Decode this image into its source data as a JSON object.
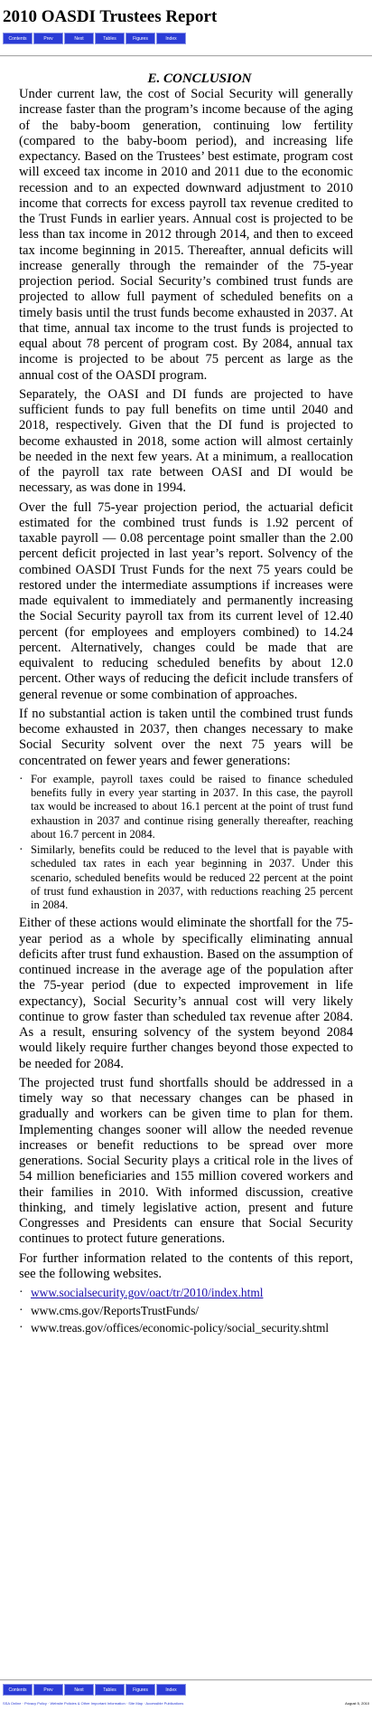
{
  "header": {
    "title": "2010 OASDI Trustees Report"
  },
  "nav": [
    {
      "label": "Contents",
      "width": 33
    },
    {
      "label": "Prev",
      "width": 33
    },
    {
      "label": "Next",
      "width": 33
    },
    {
      "label": "Tables",
      "width": 33
    },
    {
      "label": "Figures",
      "width": 33
    },
    {
      "label": "Index",
      "width": 33
    }
  ],
  "section": {
    "heading": "E. CONCLUSION",
    "paragraphs": [
      "Under current law, the cost of Social Security will generally increase faster than the program’s income because of the aging of the baby-boom generation, continuing low fertility (compared to the baby-boom period), and increasing life expectancy. Based on the Trustees’ best estimate, program cost will exceed tax income in 2010 and 2011 due to the economic recession and to an expected downward adjustment to 2010 income that corrects for excess payroll tax revenue credited to the Trust Funds in earlier years. Annual cost is projected to be less than tax income in 2012 through 2014, and then to exceed tax income beginning in 2015. Thereafter, annual deficits will increase generally through the remainder of the 75-year projection period. Social Security’s combined trust funds are projected to allow full payment of scheduled benefits on a timely basis until the trust funds become exhausted in 2037. At that time, annual tax income to the trust funds is projected to equal about 78 percent of program cost. By 2084, annual tax income is projected to be about 75 percent as large as the annual cost of the OASDI program.",
      "Separately, the OASI and DI funds are projected to have sufficient funds to pay full benefits on time until 2040 and 2018, respectively. Given that the DI fund is projected to become exhausted in 2018, some action will almost certainly be needed in the next few years. At a minimum, a reallocation of the payroll tax rate between OASI and DI would be necessary, as was done in 1994.",
      "Over the full 75-year projection period, the actuarial deficit estimated for the combined trust funds is 1.92 percent of taxable payroll — 0.08 percentage point smaller than the 2.00 percent deficit projected in last year’s report. Solvency of the combined OASDI Trust Funds for the next 75 years could be restored under the intermediate assumptions if increases were made equivalent to immediately and permanently increasing the Social Security payroll tax from its current level of 12.40 percent (for employees and employers combined) to 14.24 percent. Alternatively, changes could be made that are equivalent to reducing scheduled benefits by about 12.0 percent. Other ways of reducing the deficit include transfers of general revenue or some combination of approaches.",
      "If no substantial action is taken until the combined trust funds become exhausted in 2037, then changes necessary to make Social Security solvent over the next 75 years will be concentrated on fewer years and fewer generations:"
    ],
    "bullets": [
      "For example, payroll taxes could be raised to finance scheduled benefits fully in every year starting in 2037. In this case, the payroll tax would be increased to about 16.1 percent at the point of trust fund exhaustion in 2037 and continue rising generally thereafter, reaching about 16.7 percent in 2084.",
      "Similarly, benefits could be reduced to the level that is payable with scheduled tax rates in each year beginning in 2037. Under this scenario, scheduled benefits would be reduced 22 percent at the point of trust fund exhaustion in 2037, with reductions reaching 25 percent in 2084."
    ],
    "paragraphs_after": [
      "Either of these actions would eliminate the shortfall for the 75-year period as a whole by specifically eliminating annual deficits after trust fund exhaustion. Based on the assumption of continued increase in the average age of the population after the 75-year period (due to expected improvement in life expectancy), Social Security’s annual cost will very likely continue to grow faster than scheduled tax revenue after 2084. As a result, ensuring solvency of the system beyond 2084 would likely require further changes beyond those expected to be needed for 2084.",
      "The projected trust fund shortfalls should be addressed in a timely way so that necessary changes can be phased in gradually and workers can be given time to plan for them. Implementing changes sooner will allow the needed revenue increases or benefit reductions to be spread over more generations. Social Security plays a critical role in the lives of 54 million beneficiaries and 155 million covered workers and their families in 2010. With informed discussion, creative thinking, and timely legislative action, present and future Congresses and Presidents can ensure that Social Security continues to protect future generations.",
      "For further information related to the contents of this report, see the following websites."
    ],
    "links": [
      {
        "text": "www.socialsecurity.gov/oact/tr/2010/index.html",
        "is_link": true
      },
      {
        "text": "www.cms.gov/ReportsTrustFunds/",
        "is_link": false
      },
      {
        "text": "www.treas.gov/offices/economic-policy/social_security.shtml",
        "is_link": false
      }
    ]
  },
  "footer": {
    "links_line": "SSA Online · Privacy Policy · Website Policies & Other Important Information · Site Map · Accessible Publications",
    "date": "August 5, 2010"
  }
}
